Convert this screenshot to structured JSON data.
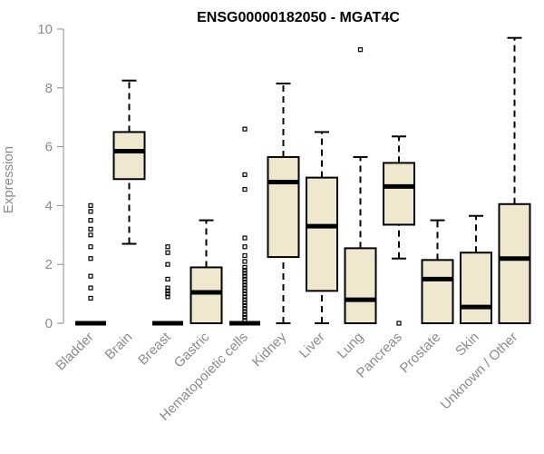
{
  "chart_data": {
    "type": "boxplot",
    "title": "ENSG00000182050 - MGAT4C",
    "ylabel": "Expression",
    "xlabel": "",
    "ylim": [
      0,
      10
    ],
    "yticks": [
      0,
      2,
      4,
      6,
      8,
      10
    ],
    "grid": false,
    "colors": {
      "box_fill": "#efe8cf",
      "stroke": "#000000",
      "axis": "#8c8c8c"
    },
    "categories": [
      "Bladder",
      "Brain",
      "Breast",
      "Gastric",
      "Hematopoietic cells",
      "Kidney",
      "Liver",
      "Lung",
      "Pancreas",
      "Prostate",
      "Skin",
      "Unknown / Other"
    ],
    "boxes": [
      {
        "category": "Bladder",
        "min": 0,
        "q1": 0,
        "median": 0,
        "q3": 0,
        "max": 0,
        "outliers": [
          0.85,
          1.2,
          1.6,
          2.2,
          2.6,
          3.0,
          3.2,
          3.5,
          3.8,
          4.0
        ]
      },
      {
        "category": "Brain",
        "min": 2.7,
        "q1": 4.9,
        "median": 5.85,
        "q3": 6.5,
        "max": 8.25,
        "outliers": []
      },
      {
        "category": "Breast",
        "min": 0,
        "q1": 0,
        "median": 0,
        "q3": 0,
        "max": 0,
        "outliers": [
          0.9,
          1.0,
          1.1,
          1.2,
          1.5,
          2.0,
          2.4,
          2.6
        ]
      },
      {
        "category": "Gastric",
        "min": 0,
        "q1": 0,
        "median": 1.05,
        "q3": 1.9,
        "max": 3.5,
        "outliers": []
      },
      {
        "category": "Hematopoietic cells",
        "min": 0,
        "q1": 0,
        "median": 0,
        "q3": 0,
        "max": 0,
        "outliers": [
          0.1,
          0.2,
          0.3,
          0.4,
          0.5,
          0.6,
          0.7,
          0.8,
          0.9,
          1.0,
          1.1,
          1.2,
          1.3,
          1.4,
          1.5,
          1.6,
          1.7,
          1.8,
          1.9,
          2.1,
          2.3,
          2.6,
          2.9,
          4.55,
          5.05,
          6.6
        ]
      },
      {
        "category": "Kidney",
        "min": 0,
        "q1": 2.25,
        "median": 4.8,
        "q3": 5.65,
        "max": 8.15,
        "outliers": []
      },
      {
        "category": "Liver",
        "min": 0,
        "q1": 1.1,
        "median": 3.3,
        "q3": 4.95,
        "max": 6.5,
        "outliers": []
      },
      {
        "category": "Lung",
        "min": 0,
        "q1": 0,
        "median": 0.8,
        "q3": 2.55,
        "max": 5.65,
        "outliers": [
          9.3
        ]
      },
      {
        "category": "Pancreas",
        "min": 2.2,
        "q1": 3.35,
        "median": 4.65,
        "q3": 5.45,
        "max": 6.35,
        "outliers": [
          0
        ]
      },
      {
        "category": "Prostate",
        "min": 0,
        "q1": 0,
        "median": 1.5,
        "q3": 2.15,
        "max": 3.5,
        "outliers": []
      },
      {
        "category": "Skin",
        "min": 0,
        "q1": 0,
        "median": 0.55,
        "q3": 2.4,
        "max": 3.65,
        "outliers": []
      },
      {
        "category": "Unknown / Other",
        "min": 0,
        "q1": 0,
        "median": 2.2,
        "q3": 4.05,
        "max": 9.7,
        "outliers": []
      }
    ]
  }
}
